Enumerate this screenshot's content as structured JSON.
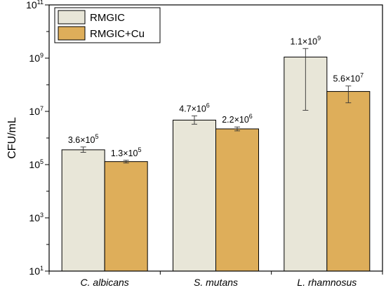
{
  "colors": {
    "rmgic": "#e8e6d8",
    "rmgic_cu": "#deae5a",
    "axis": "#000000"
  },
  "chart_data": {
    "type": "bar",
    "title": "",
    "xlabel": "",
    "ylabel": "CFU/mL",
    "yscale": "log",
    "ylim": [
      10,
      100000000000
    ],
    "yticks": [
      {
        "value": 10,
        "base": "10",
        "exp": "1"
      },
      {
        "value": 1000,
        "base": "10",
        "exp": "3"
      },
      {
        "value": 100000,
        "base": "10",
        "exp": "5"
      },
      {
        "value": 10000000,
        "base": "10",
        "exp": "7"
      },
      {
        "value": 1000000000,
        "base": "10",
        "exp": "9"
      },
      {
        "value": 100000000000,
        "base": "10",
        "exp": "11"
      }
    ],
    "categories": [
      "C. albicans",
      "S. mutans",
      "L. rhamnosus"
    ],
    "legend_position": "top-left",
    "series": [
      {
        "name": "RMGIC",
        "values": [
          360000,
          4700000,
          1100000000
        ],
        "err_low": [
          290000,
          3300000,
          11000000
        ],
        "err_high": [
          460000,
          6800000,
          2300000000
        ],
        "labels": [
          {
            "mant": "3.6×10",
            "exp": "5"
          },
          {
            "mant": "4.7×10",
            "exp": "6"
          },
          {
            "mant": "1.1×10",
            "exp": "9"
          }
        ]
      },
      {
        "name": "RMGIC+Cu",
        "values": [
          130000,
          2200000,
          56000000
        ],
        "err_low": [
          115000,
          1850000,
          21000000
        ],
        "err_high": [
          145000,
          2600000,
          90000000
        ],
        "labels": [
          {
            "mant": "1.3×10",
            "exp": "5"
          },
          {
            "mant": "2.2×10",
            "exp": "6"
          },
          {
            "mant": "5.6×10",
            "exp": "7"
          }
        ]
      }
    ]
  }
}
